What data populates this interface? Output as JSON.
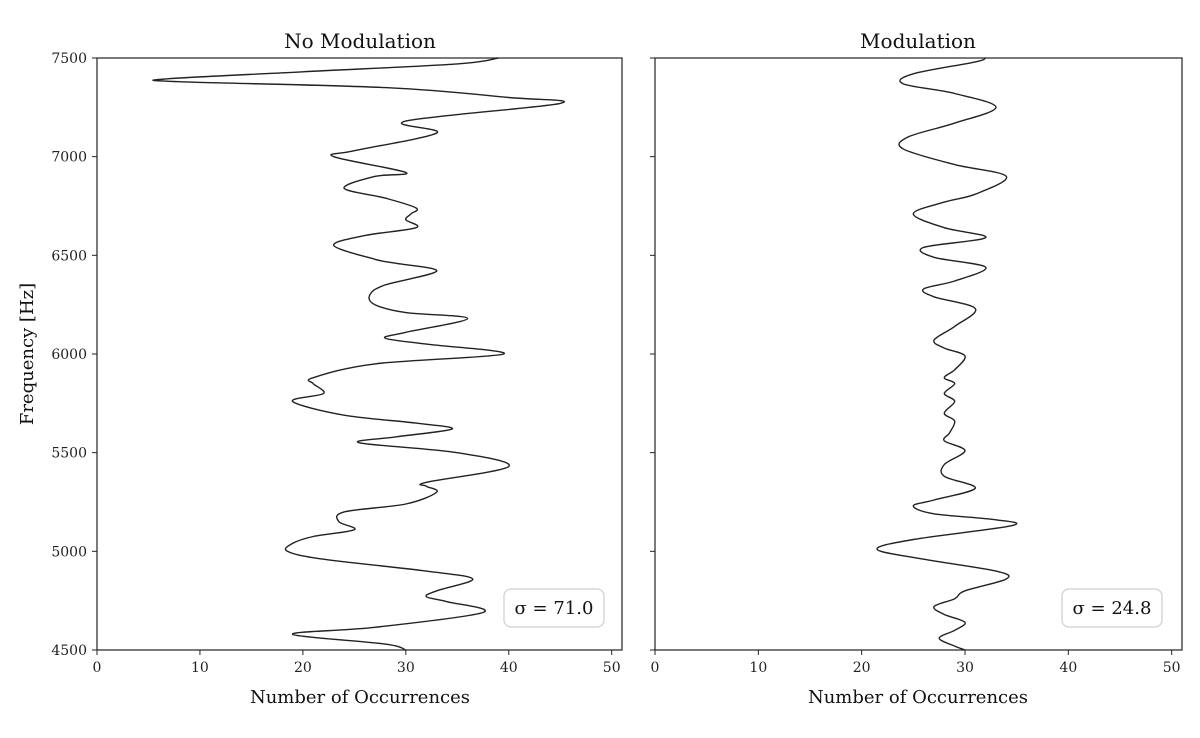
{
  "chart_data": [
    {
      "type": "line",
      "title": "No Modulation",
      "xlabel": "Number of Occurrences",
      "ylabel": "Frequency [Hz]",
      "xlim": [
        0,
        51
      ],
      "ylim": [
        4500,
        7500
      ],
      "xticks": [
        "0",
        "10",
        "20",
        "30",
        "40",
        "50"
      ],
      "yticks": [
        "4500",
        "5000",
        "5500",
        "6000",
        "6500",
        "7000",
        "7500"
      ],
      "annotation": "σ = 71.0",
      "annotation_position": "bottom-right",
      "grid": false,
      "line_color": "#222222",
      "series": [
        {
          "points": [
            [
              30,
              4500
            ],
            [
              28,
              4530
            ],
            [
              19,
              4580
            ],
            [
              27,
              4615
            ],
            [
              37.5,
              4690
            ],
            [
              34,
              4745
            ],
            [
              32,
              4770
            ],
            [
              33,
              4800
            ],
            [
              36.5,
              4860
            ],
            [
              32,
              4900
            ],
            [
              22,
              4960
            ],
            [
              18.5,
              5000
            ],
            [
              19,
              5040
            ],
            [
              21,
              5075
            ],
            [
              25,
              5110
            ],
            [
              23.5,
              5150
            ],
            [
              24,
              5200
            ],
            [
              30,
              5240
            ],
            [
              33,
              5300
            ],
            [
              32,
              5330
            ],
            [
              32,
              5350
            ],
            [
              40,
              5430
            ],
            [
              35,
              5500
            ],
            [
              25.5,
              5550
            ],
            [
              29,
              5580
            ],
            [
              34.5,
              5620
            ],
            [
              31,
              5650
            ],
            [
              24,
              5690
            ],
            [
              19,
              5760
            ],
            [
              22,
              5800
            ],
            [
              21,
              5850
            ],
            [
              21,
              5880
            ],
            [
              27,
              5950
            ],
            [
              39.5,
              6000
            ],
            [
              32,
              6050
            ],
            [
              28,
              6080
            ],
            [
              30,
              6110
            ],
            [
              36,
              6180
            ],
            [
              30,
              6210
            ],
            [
              27,
              6250
            ],
            [
              26.5,
              6300
            ],
            [
              28,
              6350
            ],
            [
              33,
              6420
            ],
            [
              29,
              6460
            ],
            [
              27,
              6480
            ],
            [
              23,
              6550
            ],
            [
              26,
              6600
            ],
            [
              31,
              6640
            ],
            [
              30,
              6680
            ],
            [
              30.5,
              6710
            ],
            [
              31,
              6740
            ],
            [
              28,
              6790
            ],
            [
              24,
              6840
            ],
            [
              27,
              6900
            ],
            [
              30,
              6920
            ],
            [
              23,
              7000
            ],
            [
              25,
              7030
            ],
            [
              33,
              7120
            ],
            [
              30,
              7180
            ],
            [
              45,
              7270
            ],
            [
              40,
              7300
            ],
            [
              28,
              7350
            ],
            [
              8,
              7380
            ],
            [
              7,
              7395
            ],
            [
              20,
              7430
            ],
            [
              35,
              7470
            ],
            [
              39,
              7500
            ]
          ]
        }
      ]
    },
    {
      "type": "line",
      "title": "Modulation",
      "xlabel": "Number of Occurrences",
      "ylabel": "",
      "xlim": [
        0,
        51
      ],
      "ylim": [
        4500,
        7500
      ],
      "xticks": [
        "0",
        "10",
        "20",
        "30",
        "40",
        "50"
      ],
      "yticks": [],
      "annotation": "σ = 24.8",
      "annotation_position": "bottom-right",
      "grid": false,
      "line_color": "#222222",
      "series": [
        {
          "points": [
            [
              30,
              4500
            ],
            [
              29,
              4520
            ],
            [
              27.5,
              4560
            ],
            [
              29,
              4600
            ],
            [
              30,
              4640
            ],
            [
              28,
              4680
            ],
            [
              27,
              4720
            ],
            [
              29,
              4760
            ],
            [
              30,
              4800
            ],
            [
              34,
              4860
            ],
            [
              33,
              4900
            ],
            [
              26,
              4960
            ],
            [
              21.5,
              5010
            ],
            [
              25,
              5060
            ],
            [
              34.5,
              5130
            ],
            [
              33,
              5160
            ],
            [
              27,
              5190
            ],
            [
              25,
              5230
            ],
            [
              27,
              5260
            ],
            [
              31,
              5320
            ],
            [
              28,
              5380
            ],
            [
              28,
              5440
            ],
            [
              30,
              5510
            ],
            [
              28,
              5560
            ],
            [
              28.5,
              5600
            ],
            [
              29,
              5660
            ],
            [
              28,
              5700
            ],
            [
              29,
              5760
            ],
            [
              28,
              5800
            ],
            [
              29,
              5850
            ],
            [
              28,
              5880
            ],
            [
              29,
              5920
            ],
            [
              30,
              5990
            ],
            [
              28,
              6030
            ],
            [
              27,
              6070
            ],
            [
              29,
              6140
            ],
            [
              31,
              6230
            ],
            [
              27,
              6290
            ],
            [
              26,
              6330
            ],
            [
              29,
              6370
            ],
            [
              32,
              6440
            ],
            [
              27,
              6490
            ],
            [
              26,
              6540
            ],
            [
              32,
              6590
            ],
            [
              28,
              6640
            ],
            [
              25,
              6710
            ],
            [
              28,
              6770
            ],
            [
              31,
              6810
            ],
            [
              34,
              6900
            ],
            [
              29,
              6960
            ],
            [
              24,
              7040
            ],
            [
              24.5,
              7100
            ],
            [
              29,
              7170
            ],
            [
              33,
              7250
            ],
            [
              29,
              7320
            ],
            [
              24,
              7370
            ],
            [
              25,
              7420
            ],
            [
              31,
              7480
            ],
            [
              32,
              7500
            ]
          ]
        }
      ]
    }
  ]
}
